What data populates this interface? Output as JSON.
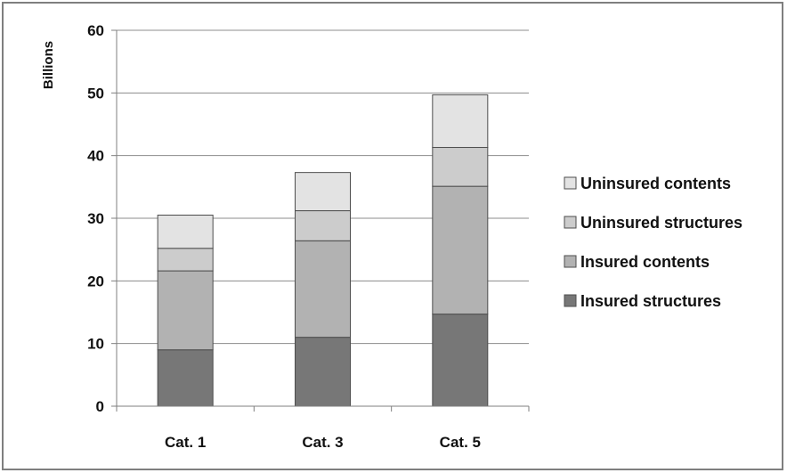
{
  "chart_data": {
    "type": "bar",
    "stacked": true,
    "ylabel": "Billions",
    "xlabel": "",
    "ylim": [
      0,
      60
    ],
    "yticks": [
      0,
      10,
      20,
      30,
      40,
      50,
      60
    ],
    "grid": true,
    "legend_position": "right",
    "categories": [
      "Cat. 1",
      "Cat. 3",
      "Cat. 5"
    ],
    "series": [
      {
        "name": "Insured structures",
        "color": "#777777",
        "values": [
          9.0,
          11.0,
          14.7
        ]
      },
      {
        "name": "Insured contents",
        "color": "#b2b2b2",
        "values": [
          12.6,
          15.4,
          20.4
        ]
      },
      {
        "name": "Uninsured structures",
        "color": "#cccccc",
        "values": [
          3.6,
          4.8,
          6.2
        ]
      },
      {
        "name": "Uninsured contents",
        "color": "#e3e3e3",
        "values": [
          5.3,
          6.1,
          8.4
        ]
      }
    ]
  }
}
